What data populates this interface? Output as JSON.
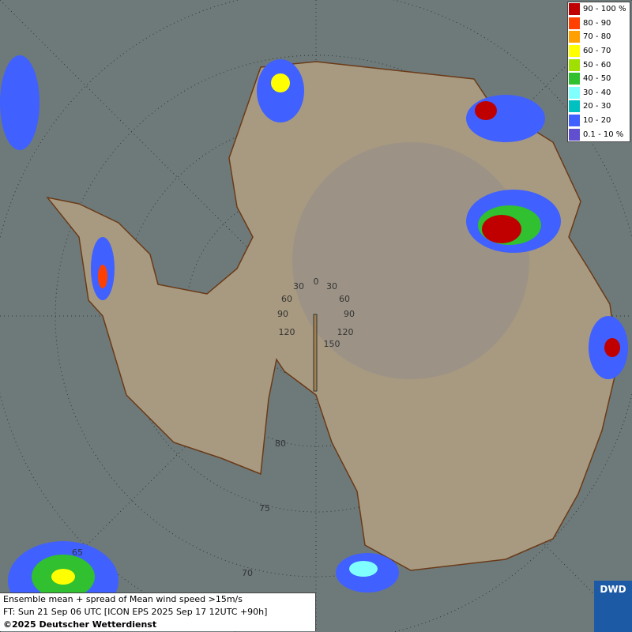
{
  "legend": {
    "items": [
      {
        "label": "90 - 100 %",
        "color": "#c00000"
      },
      {
        "label": "80 - 90",
        "color": "#ff4000"
      },
      {
        "label": "70 - 80",
        "color": "#ffa000"
      },
      {
        "label": "60 - 70",
        "color": "#ffff00"
      },
      {
        "label": "50 - 60",
        "color": "#a0e000"
      },
      {
        "label": "40 - 50",
        "color": "#30c030"
      },
      {
        "label": "30 - 40",
        "color": "#80ffff"
      },
      {
        "label": "20 - 30",
        "color": "#00c0c0"
      },
      {
        "label": "10 - 20",
        "color": "#4060ff"
      },
      {
        "label": "0.1 - 10 %",
        "color": "#6050d0"
      }
    ]
  },
  "grid_labels": {
    "longitude": [
      "0",
      "30",
      "30",
      "60",
      "60",
      "90",
      "90",
      "120",
      "120",
      "150"
    ],
    "latitude": [
      "80",
      "75",
      "70",
      "65"
    ]
  },
  "caption": {
    "lines": [
      "Ensemble mean + spread of Mean wind speed >15m/s",
      "FT: Sun 21 Sep 06 UTC [ICON EPS 2025 Sep 17 12UTC +90h]",
      "©2025 Deutscher Wetterdienst"
    ]
  },
  "logo": "DWD"
}
